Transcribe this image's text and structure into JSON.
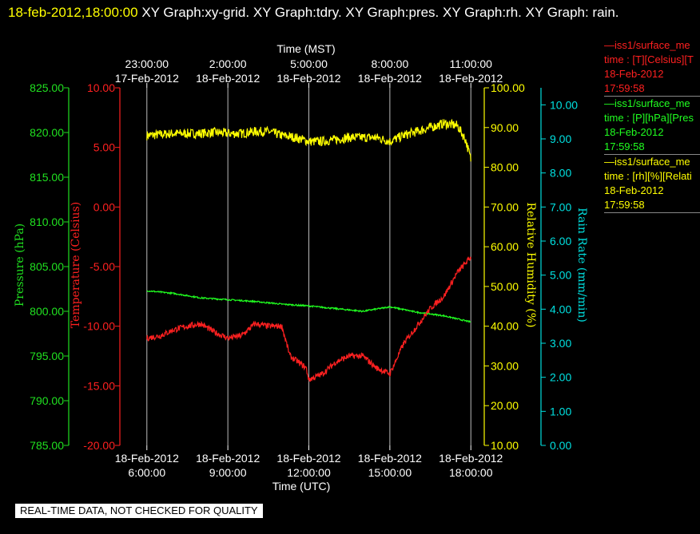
{
  "header": {
    "timestamp": "18-feb-2012,18:00:00",
    "graphs": "  XY Graph:xy-grid.  XY Graph:tdry.  XY Graph:pres.  XY Graph:rh.  XY Graph: rain."
  },
  "legend": [
    {
      "name": "—iss1/surface_me",
      "units": "time : [T][Celsius][T",
      "date": "18-Feb-2012",
      "time": "17:59:58",
      "color": "#ff2020"
    },
    {
      "name": "—iss1/surface_me",
      "units": "time : [P][hPa][Pres",
      "date": "18-Feb-2012",
      "time": "17:59:58",
      "color": "#20ff20"
    },
    {
      "name": "—iss1/surface_me",
      "units": "time : [rh][%][Relati",
      "date": "18-Feb-2012",
      "time": "17:59:58",
      "color": "#ffff00"
    }
  ],
  "quality_notice": "REAL-TIME DATA, NOT CHECKED FOR QUALITY",
  "chart_data": {
    "type": "line",
    "x_unit": "hours since 18-Feb-2012 00:00 UTC",
    "xlim": [
      5,
      18.2
    ],
    "top_axis": {
      "title": "Time (MST)",
      "ticks": [
        {
          "x": 6,
          "time": "23:00:00",
          "date": "17-Feb-2012"
        },
        {
          "x": 9,
          "time": "2:00:00",
          "date": "18-Feb-2012"
        },
        {
          "x": 12,
          "time": "5:00:00",
          "date": "18-Feb-2012"
        },
        {
          "x": 15,
          "time": "8:00:00",
          "date": "18-Feb-2012"
        },
        {
          "x": 18,
          "time": "11:00:00",
          "date": "18-Feb-2012"
        }
      ]
    },
    "bottom_axis": {
      "title": "Time (UTC)",
      "ticks": [
        {
          "x": 6,
          "date": "18-Feb-2012",
          "time": "6:00:00"
        },
        {
          "x": 9,
          "date": "18-Feb-2012",
          "time": "9:00:00"
        },
        {
          "x": 12,
          "date": "18-Feb-2012",
          "time": "12:00:00"
        },
        {
          "x": 15,
          "date": "18-Feb-2012",
          "time": "15:00:00"
        },
        {
          "x": 18,
          "date": "18-Feb-2012",
          "time": "18:00:00"
        }
      ]
    },
    "y_axes": [
      {
        "id": "pres",
        "title": "Pressure (hPa)",
        "color": "#20e020",
        "range": [
          785,
          825
        ],
        "ticks": [
          "785.00",
          "790.00",
          "795.00",
          "800.00",
          "805.00",
          "810.00",
          "815.00",
          "820.00",
          "825.00"
        ]
      },
      {
        "id": "temp",
        "title": "Temperature (Celsius)",
        "color": "#ff2020",
        "range": [
          -20,
          10
        ],
        "ticks": [
          "-20.00",
          "-15.00",
          "-10.00",
          "-5.00",
          "0.00",
          "5.00",
          "10.00"
        ]
      },
      {
        "id": "rh",
        "title": "Relative Humidity (%)",
        "color": "#ffff00",
        "range": [
          10,
          100
        ],
        "ticks": [
          "10.00",
          "20.00",
          "30.00",
          "40.00",
          "50.00",
          "60.00",
          "70.00",
          "80.00",
          "90.00",
          "100.00"
        ]
      },
      {
        "id": "rain",
        "title": "Rain Rate (mm/min)",
        "color": "#00e0e0",
        "range": [
          0,
          10.5
        ],
        "ticks": [
          "0.00",
          "1.00",
          "2.00",
          "3.00",
          "4.00",
          "5.00",
          "6.00",
          "7.00",
          "8.00",
          "9.00",
          "10.00"
        ]
      }
    ],
    "series": [
      {
        "axis": "rh",
        "color": "#ffff00",
        "noise": 1.2,
        "x": [
          6,
          7,
          8,
          8.5,
          9,
          9.5,
          10,
          10.5,
          11,
          11.5,
          12,
          12.5,
          13,
          13.5,
          14,
          14.5,
          15,
          15.5,
          16,
          16.5,
          17,
          17.5,
          17.8,
          18
        ],
        "y": [
          88,
          88.5,
          88.5,
          88.8,
          88.5,
          88.5,
          89,
          89,
          88,
          87.5,
          86.5,
          86.5,
          87,
          87.5,
          87.5,
          87.5,
          86.5,
          88,
          89,
          90,
          91,
          90.5,
          87,
          82
        ]
      },
      {
        "axis": "pres",
        "color": "#20ff20",
        "noise": 0.08,
        "x": [
          6,
          7,
          8,
          9,
          10,
          11,
          12,
          13,
          14,
          15,
          16,
          17,
          18
        ],
        "y": [
          802.3,
          802.0,
          801.5,
          801.3,
          801.1,
          800.8,
          800.6,
          800.3,
          800,
          800.5,
          799.9,
          799.5,
          798.8
        ]
      },
      {
        "axis": "temp",
        "color": "#ff2020",
        "noise": 0.25,
        "x": [
          6,
          6.5,
          7,
          7.5,
          8,
          8.5,
          9,
          9.5,
          10,
          10.5,
          11,
          11.3,
          11.6,
          11.9,
          12,
          12.5,
          13,
          13.5,
          14,
          14.5,
          15,
          15.5,
          16,
          16.5,
          17,
          17.5,
          18
        ],
        "y": [
          -11,
          -10.8,
          -10.3,
          -10,
          -9.8,
          -10.5,
          -11,
          -10.8,
          -9.8,
          -10,
          -10,
          -12.5,
          -13,
          -13.5,
          -14.5,
          -14,
          -13,
          -12.5,
          -12.5,
          -13.5,
          -14,
          -11.5,
          -10,
          -8.5,
          -7.5,
          -5.5,
          -4.2
        ]
      }
    ]
  }
}
